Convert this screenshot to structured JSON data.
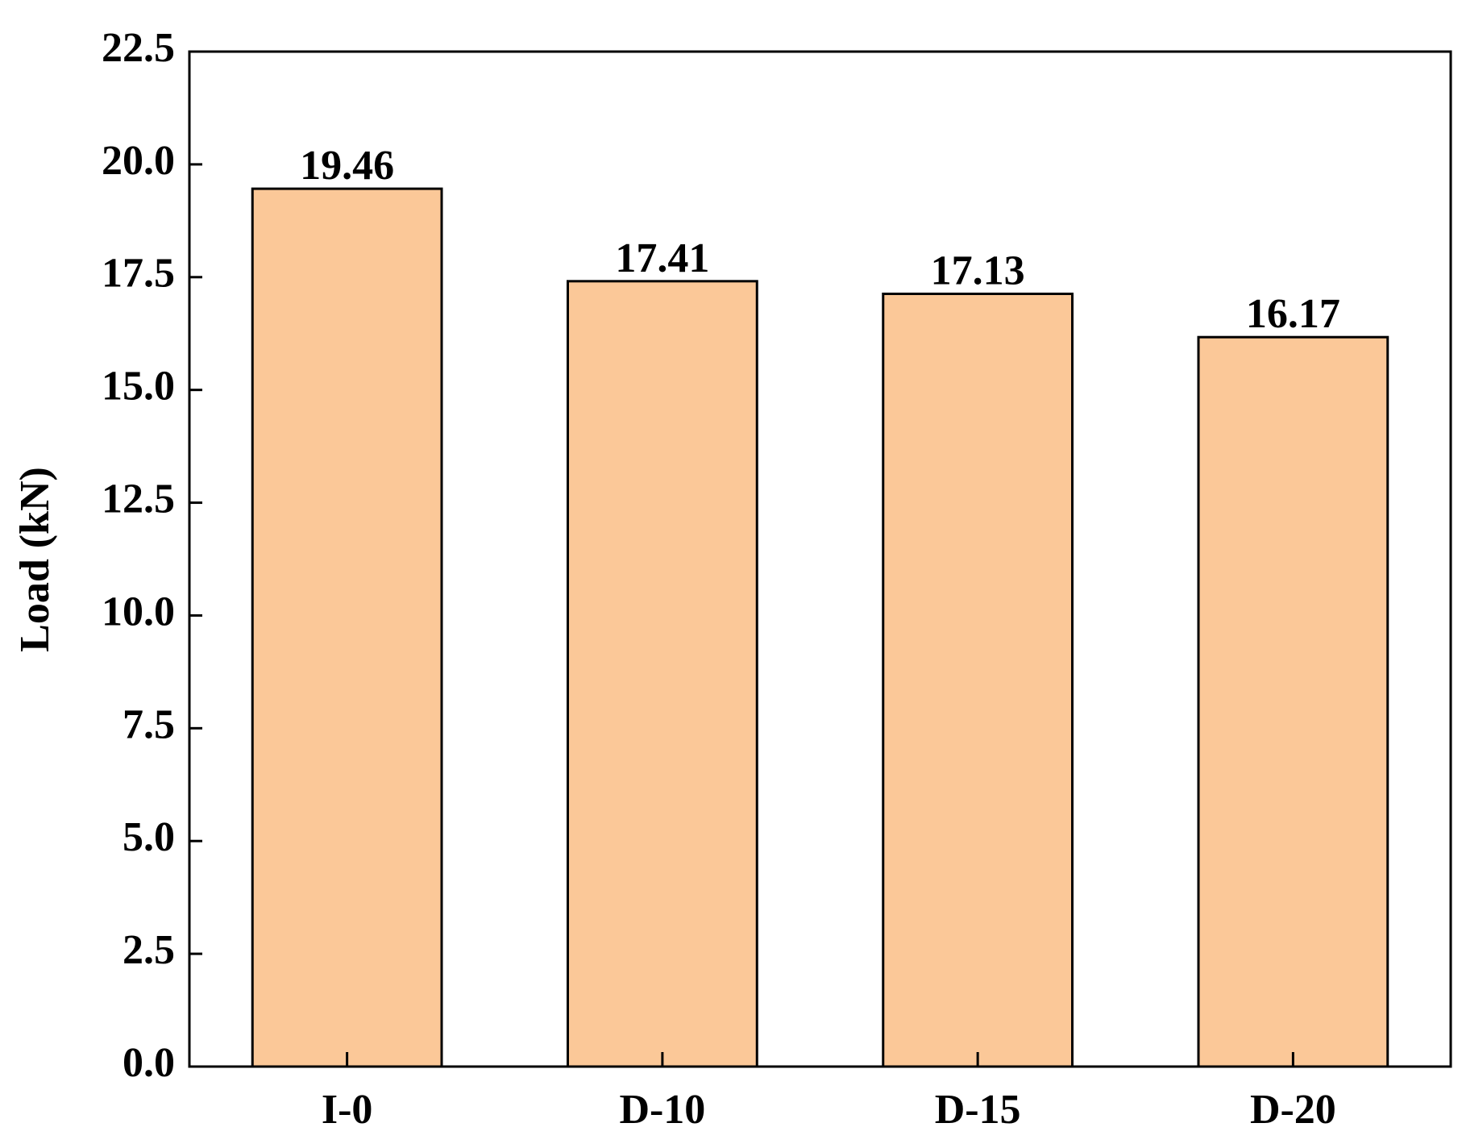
{
  "chart_data": {
    "type": "bar",
    "y_label": "Load (kN)",
    "categories": [
      "I-0",
      "D-10",
      "D-15",
      "D-20"
    ],
    "values": [
      19.46,
      17.41,
      17.13,
      16.17
    ],
    "color": "#fbc898",
    "ylim": [
      0,
      22.5
    ],
    "yticks": [
      {
        "value": 0,
        "label": "0.0"
      },
      2.5,
      {
        "value": 5,
        "label": "5.0"
      },
      7.5,
      {
        "value": 10,
        "label": "10.0"
      },
      12.5,
      {
        "value": 15,
        "label": "15.0"
      },
      17.5,
      {
        "value": 20,
        "label": "20.0"
      },
      22.5
    ],
    "grid": false
  }
}
